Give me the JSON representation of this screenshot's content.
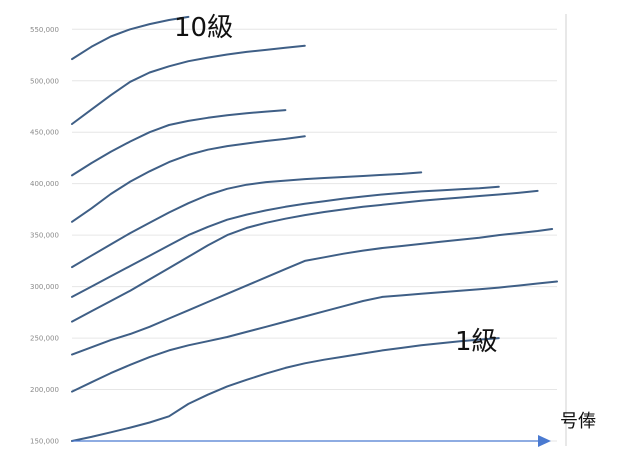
{
  "chart_data": {
    "type": "line",
    "title": "",
    "xlabel": "号俸",
    "ylabel": "",
    "ylim": [
      150000,
      560000
    ],
    "xlim": [
      0,
      100
    ],
    "yticks": [
      "150,000",
      "200,000",
      "250,000",
      "300,000",
      "350,000",
      "400,000",
      "450,000",
      "500,000",
      "550,000"
    ],
    "ytick_values": [
      150000,
      200000,
      250000,
      300000,
      350000,
      400000,
      450000,
      500000,
      550000
    ],
    "grid": true,
    "legend": "none",
    "annotations": [
      {
        "text": "10級"
      },
      {
        "text": "1級"
      }
    ],
    "colors": {
      "line": "#3f5f86",
      "grid": "#e6e6e6",
      "axis_arrow": "#4a7ad1",
      "spine": "#d0d0d0"
    },
    "series": [
      {
        "x": [
          0,
          4,
          8,
          12,
          16,
          20,
          24,
          28,
          32,
          36,
          40,
          44,
          48,
          52,
          56,
          60,
          64,
          68,
          72,
          76,
          80,
          84,
          88
        ],
        "values": [
          150000,
          154000,
          158500,
          163000,
          168000,
          174000,
          186000,
          195000,
          203000,
          209500,
          215500,
          221000,
          225500,
          229000,
          232000,
          235000,
          238000,
          240500,
          243000,
          245000,
          247000,
          248500,
          250000
        ]
      },
      {
        "x": [
          0,
          4,
          8,
          12,
          16,
          20,
          24,
          28,
          32,
          36,
          40,
          44,
          48,
          52,
          56,
          60,
          64,
          68,
          72,
          76,
          80,
          84,
          88,
          92,
          96,
          100
        ],
        "values": [
          198000,
          207000,
          216000,
          224000,
          231500,
          238000,
          243000,
          247000,
          251000,
          256000,
          261000,
          266000,
          271000,
          276000,
          281000,
          286000,
          290000,
          291500,
          293000,
          294500,
          296000,
          297500,
          299000,
          301000,
          303000,
          305000
        ]
      },
      {
        "x": [
          0,
          4,
          8,
          12,
          16,
          20,
          24,
          28,
          32,
          36,
          40,
          44,
          48,
          52,
          56,
          60,
          64,
          68,
          72,
          76,
          80,
          84,
          88,
          92,
          96,
          99
        ],
        "values": [
          234000,
          241000,
          248000,
          254000,
          261000,
          269000,
          277000,
          285000,
          293000,
          301000,
          309000,
          317000,
          325000,
          328500,
          332000,
          335000,
          337500,
          339500,
          341500,
          343500,
          345500,
          347500,
          350000,
          352000,
          354000,
          356000
        ]
      },
      {
        "x": [
          0,
          4,
          8,
          12,
          16,
          20,
          24,
          28,
          32,
          36,
          40,
          44,
          48,
          52,
          56,
          60,
          64,
          68,
          72,
          76,
          80,
          84,
          88,
          92,
          96
        ],
        "values": [
          266000,
          276000,
          286000,
          296000,
          307000,
          318000,
          329000,
          340000,
          350000,
          357000,
          362000,
          366000,
          369500,
          372500,
          375000,
          377500,
          379500,
          381500,
          383500,
          385000,
          386500,
          388000,
          389500,
          391000,
          393000
        ]
      },
      {
        "x": [
          0,
          4,
          8,
          12,
          16,
          20,
          24,
          28,
          32,
          36,
          40,
          44,
          48,
          52,
          56,
          60,
          64,
          68,
          72,
          76,
          80,
          84,
          88
        ],
        "values": [
          290000,
          300000,
          310000,
          320000,
          330000,
          340000,
          350000,
          358000,
          365000,
          370000,
          374000,
          377500,
          380500,
          383000,
          385500,
          387500,
          389500,
          391000,
          392500,
          393500,
          394500,
          395500,
          397000
        ]
      },
      {
        "x": [
          0,
          4,
          8,
          12,
          16,
          20,
          24,
          28,
          32,
          36,
          40,
          44,
          48,
          52,
          56,
          60,
          64,
          68,
          72
        ],
        "values": [
          319000,
          330000,
          341000,
          352000,
          362000,
          372000,
          381000,
          389000,
          395000,
          399000,
          401500,
          403000,
          404500,
          405500,
          406500,
          407500,
          408500,
          409500,
          411000
        ]
      },
      {
        "x": [
          0,
          4,
          8,
          12,
          16,
          20,
          24,
          28,
          32,
          36,
          40,
          44,
          48
        ],
        "values": [
          363000,
          376000,
          390000,
          402000,
          412000,
          421000,
          428000,
          433000,
          436500,
          439000,
          441500,
          443500,
          446000
        ]
      },
      {
        "x": [
          0,
          4,
          8,
          12,
          16,
          20,
          24,
          28,
          32,
          36,
          40,
          44
        ],
        "values": [
          408000,
          420000,
          431000,
          441000,
          450000,
          457000,
          461000,
          464000,
          466500,
          468500,
          470000,
          471500
        ]
      },
      {
        "x": [
          0,
          4,
          8,
          12,
          16,
          20,
          24,
          28,
          32,
          36,
          40,
          44,
          48
        ],
        "values": [
          458000,
          472000,
          486000,
          499000,
          508000,
          514000,
          519000,
          522500,
          525500,
          528000,
          530000,
          532000,
          534000
        ]
      },
      {
        "x": [
          0,
          4,
          8,
          12,
          16,
          20,
          24
        ],
        "values": [
          521000,
          533000,
          543000,
          550000,
          555000,
          559000,
          562000
        ]
      }
    ]
  }
}
